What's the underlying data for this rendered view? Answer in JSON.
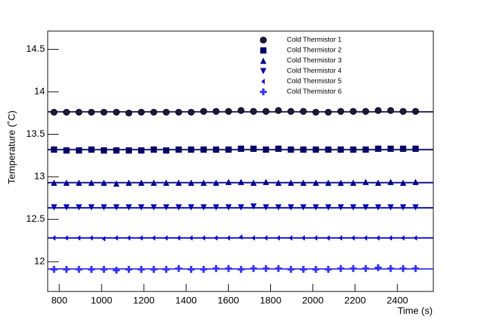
{
  "chart_data": {
    "type": "scatter",
    "x_label": "Time (s)",
    "y_label": "Temperature (˚C)",
    "xlim": [
      745,
      2570
    ],
    "ylim": [
      11.65,
      14.715
    ],
    "xticks": [
      800,
      1000,
      1200,
      1400,
      1600,
      1800,
      2000,
      2200,
      2400
    ],
    "yticks": [
      12,
      12.5,
      13,
      13.5,
      14,
      14.5
    ],
    "x": [
      775,
      834,
      893,
      952,
      1011,
      1070,
      1129,
      1188,
      1247,
      1306,
      1365,
      1424,
      1483,
      1542,
      1601,
      1660,
      1719,
      1778,
      1837,
      1896,
      1955,
      2014,
      2073,
      2132,
      2191,
      2250,
      2309,
      2368,
      2427,
      2486
    ],
    "series": [
      {
        "name": "Cold Thermistor 1",
        "color": "#1a1a40",
        "marker": "circle",
        "fit": 13.765,
        "values": [
          13.76,
          13.76,
          13.76,
          13.76,
          13.76,
          13.76,
          13.75,
          13.76,
          13.76,
          13.76,
          13.76,
          13.76,
          13.77,
          13.77,
          13.77,
          13.78,
          13.77,
          13.77,
          13.78,
          13.77,
          13.77,
          13.76,
          13.76,
          13.77,
          13.77,
          13.77,
          13.78,
          13.78,
          13.77,
          13.77
        ]
      },
      {
        "name": "Cold Thermistor 2",
        "color": "#000066",
        "marker": "square",
        "fit": 13.32,
        "values": [
          13.32,
          13.31,
          13.31,
          13.32,
          13.31,
          13.31,
          13.31,
          13.31,
          13.32,
          13.31,
          13.32,
          13.32,
          13.32,
          13.32,
          13.32,
          13.33,
          13.33,
          13.32,
          13.33,
          13.32,
          13.32,
          13.32,
          13.32,
          13.32,
          13.32,
          13.32,
          13.33,
          13.33,
          13.33,
          13.33
        ]
      },
      {
        "name": "Cold Thermistor 3",
        "color": "#00008b",
        "marker": "triangle-up",
        "fit": 12.93,
        "values": [
          12.93,
          12.93,
          12.93,
          12.93,
          12.93,
          12.92,
          12.93,
          12.93,
          12.93,
          12.93,
          12.93,
          12.93,
          12.93,
          12.93,
          12.94,
          12.94,
          12.93,
          12.94,
          12.93,
          12.93,
          12.93,
          12.93,
          12.93,
          12.93,
          12.93,
          12.94,
          12.93,
          12.94,
          12.93,
          12.94
        ]
      },
      {
        "name": "Cold Thermistor 4",
        "color": "#0000b0",
        "marker": "triangle-down",
        "fit": 12.635,
        "values": [
          12.64,
          12.64,
          12.64,
          12.64,
          12.64,
          12.64,
          12.64,
          12.64,
          12.64,
          12.64,
          12.64,
          12.64,
          12.64,
          12.64,
          12.64,
          12.64,
          12.65,
          12.64,
          12.64,
          12.64,
          12.64,
          12.64,
          12.64,
          12.64,
          12.64,
          12.64,
          12.64,
          12.64,
          12.64,
          12.64
        ]
      },
      {
        "name": "Cold Thermistor 5",
        "color": "#0000cc",
        "marker": "diamond",
        "fit": 12.28,
        "values": [
          12.28,
          12.28,
          12.28,
          12.28,
          12.27,
          12.28,
          12.28,
          12.28,
          12.28,
          12.28,
          12.28,
          12.28,
          12.28,
          12.28,
          12.28,
          12.29,
          12.28,
          12.28,
          12.28,
          12.28,
          12.28,
          12.28,
          12.28,
          12.28,
          12.28,
          12.28,
          12.28,
          12.28,
          12.28,
          12.28
        ]
      },
      {
        "name": "Cold Thermistor 6",
        "color": "#3333ee",
        "marker": "cross",
        "fit": 11.915,
        "values": [
          11.91,
          11.91,
          11.91,
          11.91,
          11.91,
          11.9,
          11.91,
          11.91,
          11.91,
          11.91,
          11.92,
          11.91,
          11.91,
          11.92,
          11.92,
          11.91,
          11.92,
          11.92,
          11.92,
          11.91,
          11.91,
          11.91,
          11.91,
          11.92,
          11.92,
          11.92,
          11.93,
          11.92,
          11.92,
          11.92
        ]
      }
    ]
  }
}
